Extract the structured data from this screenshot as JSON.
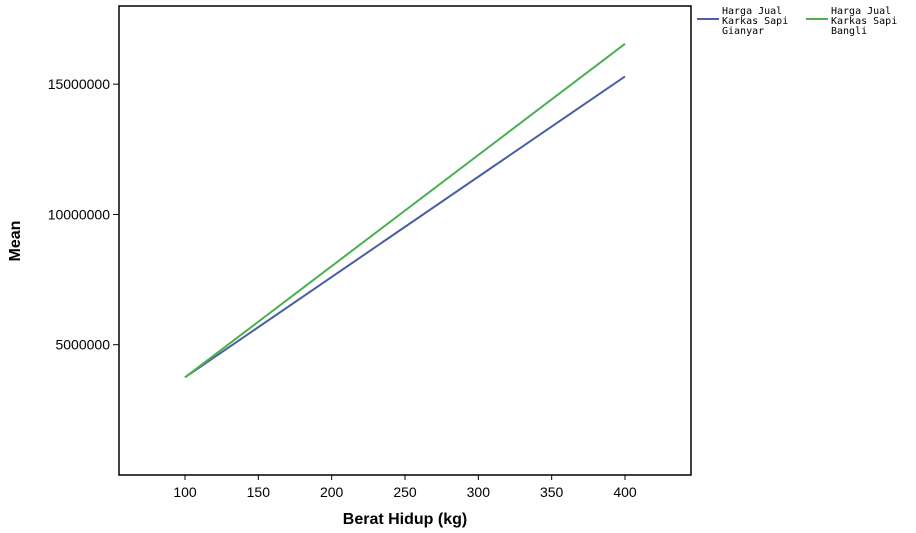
{
  "chart_data": {
    "type": "line",
    "xlabel": "Berat Hidup (kg)",
    "ylabel": "Mean",
    "xlim": [
      55,
      445
    ],
    "ylim": [
      0,
      18000000
    ],
    "x_ticks": [
      100,
      150,
      200,
      250,
      300,
      350,
      400
    ],
    "y_ticks": [
      5000000,
      10000000,
      15000000
    ],
    "x_tick_labels": [
      "100",
      "150",
      "200",
      "250",
      "300",
      "350",
      "400"
    ],
    "y_tick_labels": [
      "5000000",
      "10000000",
      "15000000"
    ],
    "x": [
      100,
      400
    ],
    "series": [
      {
        "name": "Harga Jual Karkas Sapi Gianyar",
        "legend_lines": [
          "Harga Jual",
          "Karkas Sapi",
          "Gianyar"
        ],
        "color": "#4a5fa5",
        "values": [
          3750000,
          15300000
        ]
      },
      {
        "name": "Harga Jual Karkas Sapi Bangli",
        "legend_lines": [
          "Harga Jual",
          "Karkas Sapi",
          "Bangli"
        ],
        "color": "#4caf50",
        "values": [
          3750000,
          16550000
        ]
      }
    ],
    "grid": false,
    "legend_position": "top-right"
  }
}
